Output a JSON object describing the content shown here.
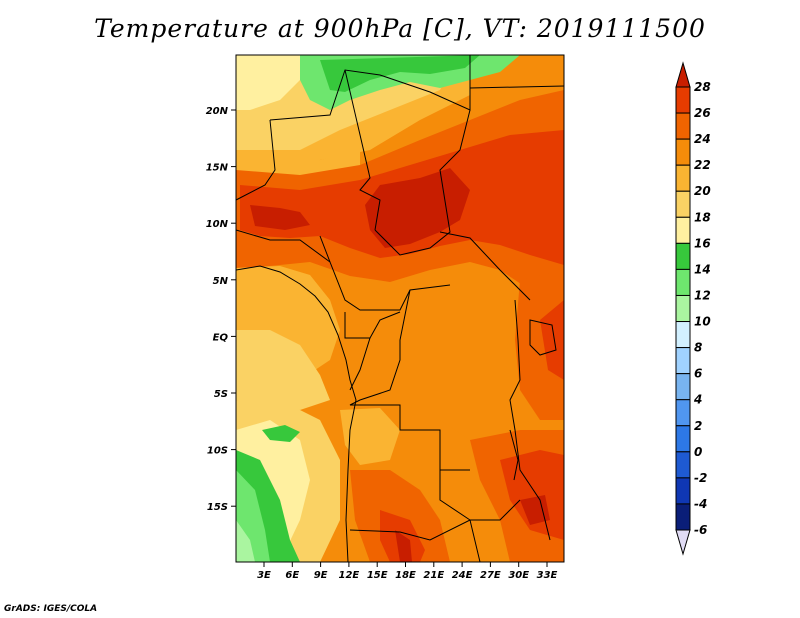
{
  "title": "Temperature at 900hPa [C], VT: 2019111500",
  "credit": "GrADS: IGES/COLA",
  "map": {
    "lat_ticks": [
      "20N",
      "15N",
      "10N",
      "5N",
      "EQ",
      "5S",
      "10S",
      "15S"
    ],
    "lon_ticks": [
      "3E",
      "6E",
      "9E",
      "12E",
      "15E",
      "18E",
      "21E",
      "24E",
      "27E",
      "30E",
      "33E"
    ]
  },
  "colorbar": {
    "levels": [
      "28",
      "26",
      "24",
      "22",
      "20",
      "18",
      "16",
      "14",
      "12",
      "10",
      "8",
      "6",
      "4",
      "2",
      "0",
      "-2",
      "-4",
      "-6"
    ],
    "colors": [
      "#c81e00",
      "#e63c00",
      "#f06400",
      "#f58c0a",
      "#fab432",
      "#fad264",
      "#fff0a0",
      "#37c83c",
      "#6ee66e",
      "#aaf5a0",
      "#d2f0ff",
      "#a0d2ff",
      "#78b4f0",
      "#5096f0",
      "#2d78e6",
      "#1e5ad2",
      "#0f37b4",
      "#0a1e78",
      "#e1dcf5"
    ]
  }
}
